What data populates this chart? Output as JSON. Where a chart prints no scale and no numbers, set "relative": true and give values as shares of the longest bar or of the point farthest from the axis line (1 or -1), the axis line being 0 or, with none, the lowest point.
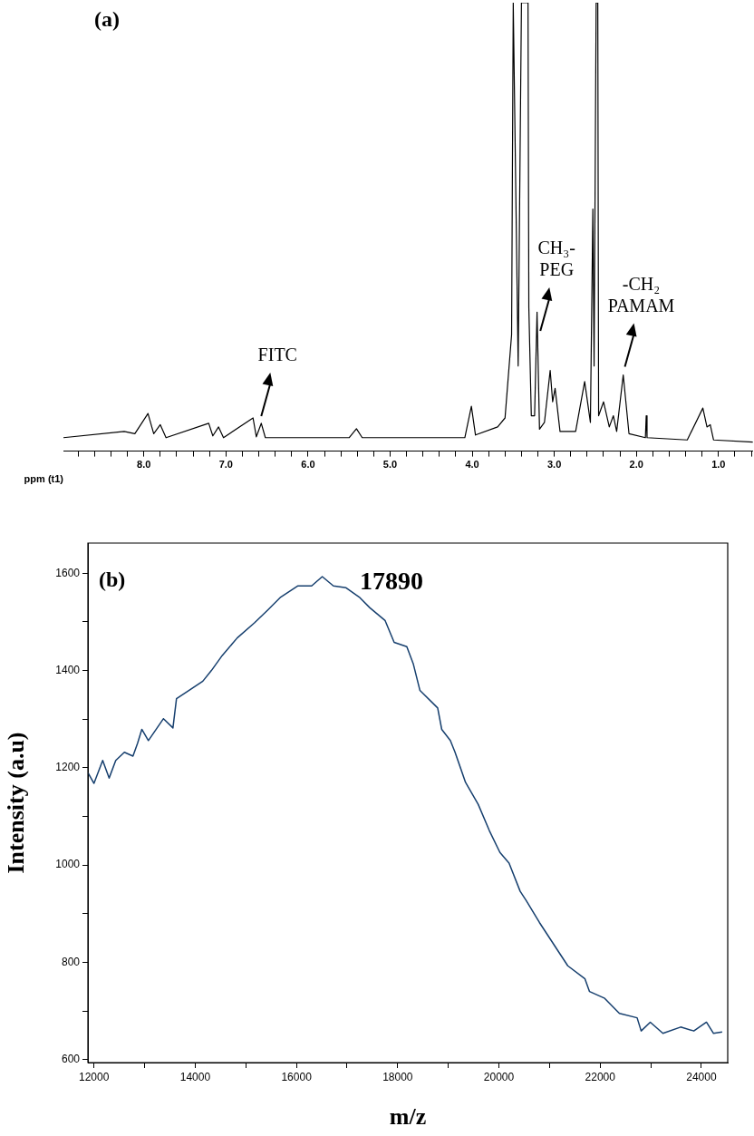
{
  "chart_data": [
    {
      "type": "line",
      "title": "(a)",
      "xlabel": "ppm (t1)",
      "relative": true,
      "x": [
        8.98,
        8.24,
        8.11,
        7.95,
        7.88,
        7.8,
        7.73,
        7.21,
        7.16,
        7.09,
        7.03,
        6.67,
        6.63,
        6.57,
        6.52,
        5.5,
        5.41,
        5.34,
        4.2,
        4.09,
        4.01,
        3.96,
        3.69,
        3.6,
        3.52,
        3.5,
        3.44,
        3.4,
        3.32,
        3.31,
        3.28,
        3.24,
        3.21,
        3.18,
        3.12,
        3.05,
        3.02,
        2.99,
        2.93,
        2.74,
        2.63,
        2.56,
        2.53,
        2.515,
        2.49,
        2.47,
        2.46,
        2.4,
        2.33,
        2.28,
        2.24,
        2.16,
        2.09,
        1.89,
        1.88,
        1.87,
        1.38,
        1.19,
        1.14,
        1.1,
        1.06,
        0.58
      ],
      "series": [
        {
          "color": "#000000",
          "values": [
            0.03,
            0.044,
            0.039,
            0.084,
            0.039,
            0.059,
            0.03,
            0.062,
            0.034,
            0.054,
            0.03,
            0.074,
            0.032,
            0.062,
            0.03,
            0.03,
            0.05,
            0.03,
            0.03,
            0.03,
            0.1,
            0.036,
            0.054,
            0.074,
            0.26,
            1,
            0.19,
            1,
            1,
            0.32,
            0.079,
            0.079,
            0.31,
            0.049,
            0.064,
            0.18,
            0.11,
            0.14,
            0.044,
            0.044,
            0.155,
            0.064,
            0.54,
            0.19,
            1,
            1,
            0.079,
            0.11,
            0.054,
            0.079,
            0.044,
            0.17,
            0.039,
            0.03,
            0.079,
            0.03,
            0.025,
            0.096,
            0.054,
            0.059,
            0.025,
            0.02
          ]
        }
      ],
      "xlim": [
        8.98,
        0.58
      ],
      "xticks": [
        {
          "value": 8.8,
          "label": null
        },
        {
          "value": 8.6,
          "label": null
        },
        {
          "value": 8.4,
          "label": null
        },
        {
          "value": 8.2,
          "label": null
        },
        {
          "value": 8,
          "label": "8.0"
        },
        {
          "value": 7.8,
          "label": null
        },
        {
          "value": 7.6,
          "label": null
        },
        {
          "value": 7.4,
          "label": null
        },
        {
          "value": 7.2,
          "label": null
        },
        {
          "value": 7,
          "label": "7.0"
        },
        {
          "value": 6.8,
          "label": null
        },
        {
          "value": 6.6,
          "label": null
        },
        {
          "value": 6.4,
          "label": null
        },
        {
          "value": 6.2,
          "label": null
        },
        {
          "value": 6,
          "label": "6.0"
        },
        {
          "value": 5.8,
          "label": null
        },
        {
          "value": 5.6,
          "label": null
        },
        {
          "value": 5.4,
          "label": null
        },
        {
          "value": 5.2,
          "label": null
        },
        {
          "value": 5,
          "label": "5.0"
        },
        {
          "value": 4.8,
          "label": null
        },
        {
          "value": 4.6,
          "label": null
        },
        {
          "value": 4.4,
          "label": null
        },
        {
          "value": 4.2,
          "label": null
        },
        {
          "value": 4,
          "label": "4.0"
        },
        {
          "value": 3.8,
          "label": null
        },
        {
          "value": 3.6,
          "label": null
        },
        {
          "value": 3.4,
          "label": null
        },
        {
          "value": 3.2,
          "label": null
        },
        {
          "value": 3,
          "label": "3.0"
        },
        {
          "value": 2.8,
          "label": null
        },
        {
          "value": 2.6,
          "label": null
        },
        {
          "value": 2.4,
          "label": null
        },
        {
          "value": 2.2,
          "label": null
        },
        {
          "value": 2,
          "label": "2.0"
        },
        {
          "value": 1.8,
          "label": null
        },
        {
          "value": 1.6,
          "label": null
        },
        {
          "value": 1.4,
          "label": null
        },
        {
          "value": 1.2,
          "label": null
        },
        {
          "value": 1,
          "label": "1.0"
        },
        {
          "value": 0.8,
          "label": null
        },
        {
          "value": 0.6,
          "label": null
        }
      ],
      "annotations": [
        {
          "text": "FITC",
          "x": 6.57,
          "y": 0.07
        },
        {
          "text": "CH₃-\nPEG",
          "x": 3.17,
          "y": 0.26
        },
        {
          "text": "-CH₂\nPAMAM",
          "x": 2.14,
          "y": 0.18
        }
      ]
    },
    {
      "type": "line",
      "title": "(b)",
      "xlabel": "m/z",
      "ylabel": "Intensity (a.u)",
      "x": [
        11880,
        12000,
        12172,
        12300,
        12430,
        12600,
        12770,
        12860,
        12945,
        13075,
        13373,
        13560,
        13630,
        14150,
        14320,
        14535,
        14830,
        15170,
        15440,
        15690,
        16030,
        16300,
        16510,
        16730,
        16980,
        17240,
        17450,
        17750,
        17930,
        18180,
        18310,
        18440,
        18790,
        18870,
        19040,
        19130,
        19340,
        19590,
        19810,
        20020,
        20200,
        20420,
        20540,
        20800,
        21020,
        21360,
        21700,
        21790,
        22090,
        22380,
        22730,
        22810,
        22990,
        23240,
        23590,
        23850,
        24100,
        24240,
        24410
      ],
      "series": [
        {
          "color": "#163f6e",
          "values": [
            1190,
            1168,
            1215,
            1179,
            1215,
            1232,
            1224,
            1250,
            1279,
            1256,
            1301,
            1282,
            1342,
            1378,
            1400,
            1431,
            1467,
            1498,
            1525,
            1551,
            1574,
            1574,
            1593,
            1574,
            1570,
            1551,
            1529,
            1503,
            1458,
            1449,
            1413,
            1359,
            1323,
            1279,
            1256,
            1233,
            1170,
            1125,
            1071,
            1026,
            1004,
            946,
            927,
            882,
            847,
            793,
            766,
            740,
            726,
            695,
            686,
            659,
            677,
            654,
            667,
            659,
            677,
            654,
            657
          ]
        }
      ],
      "xlim": [
        11880,
        24520
      ],
      "ylim": [
        594,
        1662
      ],
      "xticks": [
        12000,
        {
          "value": 13000,
          "label": null
        },
        14000,
        {
          "value": 15000,
          "label": null
        },
        16000,
        {
          "value": 17000,
          "label": null
        },
        18000,
        {
          "value": 19000,
          "label": null
        },
        20000,
        {
          "value": 21000,
          "label": null
        },
        22000,
        {
          "value": 23000,
          "label": null
        },
        24000
      ],
      "yticks": [
        600,
        {
          "value": 700,
          "label": null
        },
        800,
        {
          "value": 900,
          "label": null
        },
        1000,
        {
          "value": 1100,
          "label": null
        },
        1200,
        {
          "value": 1300,
          "label": null
        },
        1400,
        {
          "value": 1500,
          "label": null
        },
        1600
      ],
      "annotations": [
        "17890"
      ]
    }
  ]
}
